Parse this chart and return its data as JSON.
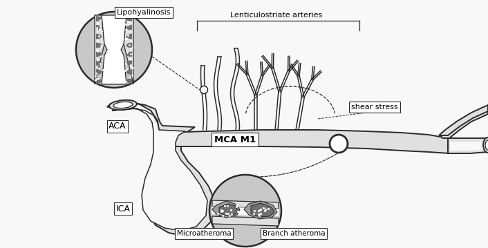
{
  "bg": "#f8f8f8",
  "vf": "#e0e0e0",
  "ve": "#2a2a2a",
  "dp": "#707070",
  "mp": "#a0a0a0",
  "lp": "#c8c8c8",
  "wh": "#ffffff",
  "lw": 1.4,
  "label_lipo": "Lipohyalinosis",
  "label_lsa": "Lenticulostriate arteries",
  "label_shear": "shear stress",
  "label_aca": "ACA",
  "label_mca": "MCA M1",
  "label_ica": "ICA",
  "label_micro": "Microatheroma",
  "label_branch": "Branch atheroma",
  "figw": 7.06,
  "figh": 3.59,
  "dpi": 100
}
